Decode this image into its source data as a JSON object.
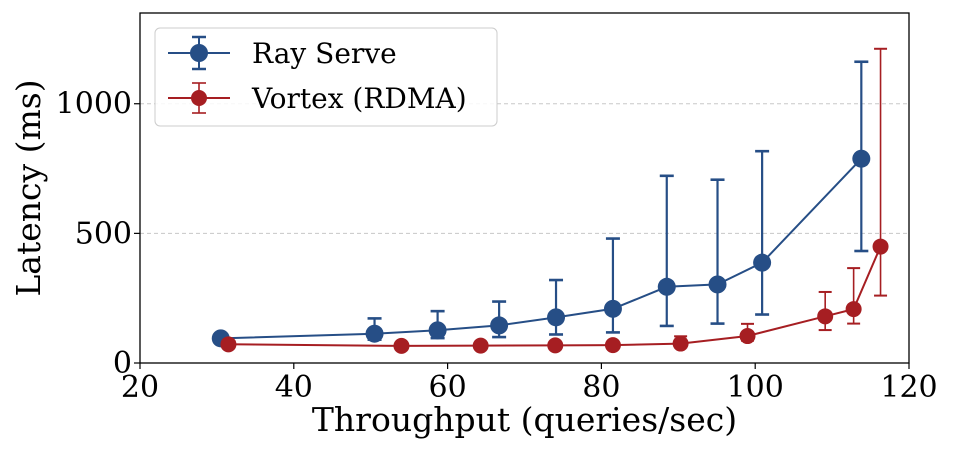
{
  "chart_data": {
    "type": "line",
    "title": "",
    "xlabel": "Throughput (queries/sec)",
    "ylabel": "Latency (ms)",
    "xlim": [
      20,
      120
    ],
    "ylim": [
      0,
      1350
    ],
    "xticks": [
      20,
      40,
      60,
      80,
      100,
      120
    ],
    "yticks": [
      0,
      500,
      1000
    ],
    "grid": "horizontal dashed at y ticks",
    "legend_position": "top-left",
    "series": [
      {
        "name": "Ray Serve",
        "color": "#264e86",
        "x": [
          30.5,
          50.5,
          58.7,
          66.7,
          74.1,
          81.5,
          88.5,
          95.1,
          100.9,
          113.8
        ],
        "y": [
          95,
          113,
          126,
          145,
          176,
          209,
          294,
          303,
          387,
          788
        ],
        "err_low": [
          null,
          90,
          96,
          100,
          110,
          118,
          143,
          152,
          187,
          432
        ],
        "err_high": [
          null,
          172,
          200,
          237,
          320,
          480,
          722,
          707,
          817,
          1162
        ]
      },
      {
        "name": "Vortex (RDMA)",
        "color": "#a61e22",
        "x": [
          31.5,
          54.0,
          64.3,
          74.0,
          81.5,
          90.3,
          99.0,
          109.1,
          112.8,
          116.3
        ],
        "y": [
          72,
          66,
          67,
          68,
          69,
          75,
          104,
          180,
          208,
          449
        ],
        "err_low": [
          null,
          null,
          null,
          null,
          null,
          60,
          86,
          127,
          152,
          260
        ],
        "err_high": [
          null,
          null,
          null,
          null,
          null,
          103,
          151,
          274,
          366,
          1212
        ]
      }
    ]
  }
}
